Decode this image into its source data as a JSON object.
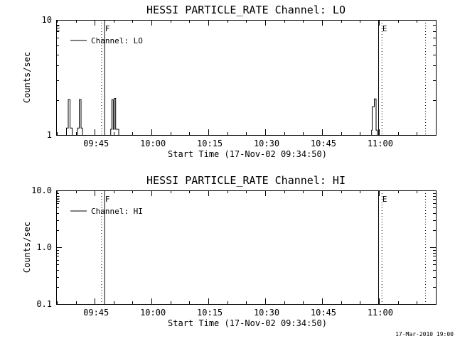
{
  "window": {
    "background": "#ffffff",
    "foreground": "#000000"
  },
  "footer": {
    "timestamp": "17-Mar-2010 19:00"
  },
  "chart_data": [
    {
      "type": "line",
      "panel": "lo",
      "title": "HESSI PARTICLE_RATE Channel: LO",
      "xlabel": "Start Time (17-Nov-02 09:34:50)",
      "ylabel": "Counts/sec",
      "yscale": "log",
      "ylim": [
        1,
        10
      ],
      "yticks": [
        {
          "value": 1,
          "label": "1"
        },
        {
          "value": 10,
          "label": "10"
        }
      ],
      "x_start_time": "09:34:50",
      "x_range_minutes": [
        0,
        100.2
      ],
      "xticks": [
        {
          "minutes": 10.17,
          "label": "09:45"
        },
        {
          "minutes": 25.17,
          "label": "10:00"
        },
        {
          "minutes": 40.17,
          "label": "10:15"
        },
        {
          "minutes": 55.17,
          "label": "10:30"
        },
        {
          "minutes": 70.17,
          "label": "10:45"
        },
        {
          "minutes": 85.17,
          "label": "11:00"
        }
      ],
      "x_minor_interval_minutes": 5,
      "x_minor_offset_minutes": 0.17,
      "grid": false,
      "legend": {
        "label": "Channel: LO",
        "position": "upper-left",
        "line_style": "solid"
      },
      "event_markers": [
        {
          "label": "E",
          "label_minutes": 0.0,
          "lines": []
        },
        {
          "label": "F",
          "label_minutes": 13.1,
          "lines": [
            {
              "style": "dotted",
              "minutes": 11.9
            },
            {
              "style": "solid",
              "minutes": 12.7
            }
          ]
        },
        {
          "label": "E",
          "label_minutes": 86.3,
          "lines": [
            {
              "style": "solid",
              "minutes": 85.0
            },
            {
              "style": "dotted",
              "minutes": 85.9
            }
          ]
        },
        {
          "label": "",
          "label_minutes": null,
          "lines": [
            {
              "style": "dotted",
              "minutes": 97.4
            }
          ]
        }
      ],
      "series": [
        {
          "name": "Channel: LO",
          "baseline_value": 1,
          "units": "counts/sec",
          "spikes_step_points_min_vs_counts": [
            [
              [
                2.72,
                1
              ],
              [
                2.72,
                1.15
              ],
              [
                3.19,
                1.15
              ],
              [
                3.19,
                2.03
              ],
              [
                3.66,
                2.03
              ],
              [
                3.66,
                1.15
              ],
              [
                4.22,
                1.15
              ],
              [
                4.22,
                1
              ]
            ],
            [
              [
                5.63,
                1
              ],
              [
                5.63,
                1.15
              ],
              [
                6.1,
                1.15
              ],
              [
                6.1,
                2.03
              ],
              [
                6.57,
                2.03
              ],
              [
                6.57,
                1.15
              ],
              [
                6.94,
                1.15
              ],
              [
                6.94,
                1
              ]
            ],
            [
              [
                14.39,
                1
              ],
              [
                14.39,
                1.12
              ],
              [
                14.69,
                1.12
              ],
              [
                14.69,
                2.03
              ],
              [
                15.06,
                2.03
              ],
              [
                15.06,
                1.12
              ],
              [
                15.33,
                1.12
              ],
              [
                15.33,
                2.08
              ],
              [
                15.7,
                2.08
              ],
              [
                15.7,
                1.12
              ],
              [
                16.51,
                1.12
              ],
              [
                16.51,
                1
              ]
            ],
            [
              [
                83.25,
                1
              ],
              [
                83.25,
                1.1
              ],
              [
                83.4,
                1.1
              ],
              [
                83.4,
                1.76
              ],
              [
                83.96,
                1.76
              ],
              [
                83.96,
                2.06
              ],
              [
                84.43,
                2.06
              ],
              [
                84.43,
                1.1
              ],
              [
                84.75,
                1.1
              ],
              [
                84.75,
                1
              ]
            ]
          ]
        }
      ]
    },
    {
      "type": "line",
      "panel": "hi",
      "title": "HESSI PARTICLE_RATE Channel: HI",
      "xlabel": "Start Time (17-Nov-02 09:34:50)",
      "ylabel": "Counts/sec",
      "yscale": "log",
      "ylim": [
        0.1,
        10
      ],
      "yticks": [
        {
          "value": 0.1,
          "label": "0.1"
        },
        {
          "value": 1,
          "label": "1.0"
        },
        {
          "value": 10,
          "label": "10.0"
        }
      ],
      "x_start_time": "09:34:50",
      "x_range_minutes": [
        0,
        100.2
      ],
      "xticks": [
        {
          "minutes": 10.17,
          "label": "09:45"
        },
        {
          "minutes": 25.17,
          "label": "10:00"
        },
        {
          "minutes": 40.17,
          "label": "10:15"
        },
        {
          "minutes": 55.17,
          "label": "10:30"
        },
        {
          "minutes": 70.17,
          "label": "10:45"
        },
        {
          "minutes": 85.17,
          "label": "11:00"
        }
      ],
      "x_minor_interval_minutes": 5,
      "x_minor_offset_minutes": 0.17,
      "grid": false,
      "legend": {
        "label": "Channel: HI",
        "position": "upper-left",
        "line_style": "solid"
      },
      "event_markers": [
        {
          "label": "E",
          "label_minutes": 0.0,
          "lines": []
        },
        {
          "label": "F",
          "label_minutes": 13.1,
          "lines": [
            {
              "style": "dotted",
              "minutes": 11.9
            },
            {
              "style": "solid",
              "minutes": 12.7
            }
          ]
        },
        {
          "label": "E",
          "label_minutes": 86.3,
          "lines": [
            {
              "style": "solid",
              "minutes": 85.0
            },
            {
              "style": "dotted",
              "minutes": 85.9
            }
          ]
        },
        {
          "label": "",
          "label_minutes": null,
          "lines": [
            {
              "style": "dotted",
              "minutes": 97.4
            }
          ]
        }
      ],
      "series": [
        {
          "name": "Channel: HI",
          "baseline_value": 0.1,
          "units": "counts/sec",
          "spikes_step_points_min_vs_counts": []
        }
      ]
    }
  ]
}
